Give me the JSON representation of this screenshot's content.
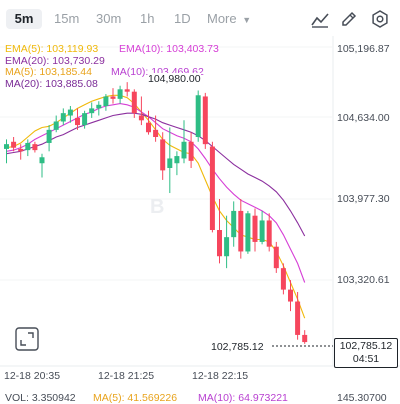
{
  "toolbar": {
    "timeframes": [
      "5m",
      "15m",
      "30m",
      "1h",
      "1D"
    ],
    "active": "5m",
    "more_label": "More",
    "icons": [
      "indicator-icon",
      "draw-icon",
      "settings-icon"
    ]
  },
  "legend": {
    "ema5": "EMA(5): 103,119.93",
    "ema10": "EMA(10): 103,403.73",
    "ema20": "EMA(20): 103,730.29",
    "ma5": "MA(5): 103,185.44",
    "ma10": "MA(10): 103,469.62",
    "ma20": "MA(20): 103,885.08"
  },
  "colors": {
    "up": "#2ebd85",
    "down": "#f6465d",
    "ema5": "#f0b90b",
    "ema10": "#d63fd6",
    "ema20": "#8b2f9e",
    "ma5": "#e8a31c",
    "ma10": "#b83fd1",
    "ma20": "#7a2a96"
  },
  "price_axis": [
    "105,196.87",
    "104,634.00",
    "103,977.30",
    "103,320.61"
  ],
  "time_axis": [
    "12-18 20:35",
    "12-18 21:25",
    "12-18 22:15"
  ],
  "max_label": "104,980.00",
  "min_label": "102,785.12",
  "current_price": "102,785.12",
  "countdown": "04:51",
  "watermark": "B",
  "bottom": {
    "vol": "VOL: 3.350942",
    "ma5": "MA(5): 41.569226",
    "ma10": "MA(10): 64.973221",
    "right": "145.30700"
  },
  "chart_data": {
    "type": "candlestick",
    "price_range": [
      102700,
      105300
    ],
    "candles": [
      {
        "o": 104420,
        "h": 104500,
        "l": 104300,
        "c": 104460
      },
      {
        "o": 104480,
        "h": 104520,
        "l": 104400,
        "c": 104430
      },
      {
        "o": 104420,
        "h": 104460,
        "l": 104330,
        "c": 104400
      },
      {
        "o": 104410,
        "h": 104500,
        "l": 104360,
        "c": 104470
      },
      {
        "o": 104460,
        "h": 104480,
        "l": 104390,
        "c": 104410
      },
      {
        "o": 104300,
        "h": 104380,
        "l": 104180,
        "c": 104350
      },
      {
        "o": 104470,
        "h": 104620,
        "l": 104400,
        "c": 104580
      },
      {
        "o": 104580,
        "h": 104700,
        "l": 104560,
        "c": 104650
      },
      {
        "o": 104650,
        "h": 104760,
        "l": 104620,
        "c": 104720
      },
      {
        "o": 104700,
        "h": 104780,
        "l": 104640,
        "c": 104750
      },
      {
        "o": 104680,
        "h": 104760,
        "l": 104580,
        "c": 104620
      },
      {
        "o": 104620,
        "h": 104740,
        "l": 104590,
        "c": 104720
      },
      {
        "o": 104720,
        "h": 104810,
        "l": 104680,
        "c": 104760
      },
      {
        "o": 104760,
        "h": 104820,
        "l": 104700,
        "c": 104790
      },
      {
        "o": 104780,
        "h": 104880,
        "l": 104740,
        "c": 104860
      },
      {
        "o": 104860,
        "h": 104930,
        "l": 104800,
        "c": 104840
      },
      {
        "o": 104840,
        "h": 104950,
        "l": 104800,
        "c": 104920
      },
      {
        "o": 104920,
        "h": 104980,
        "l": 104860,
        "c": 104900
      },
      {
        "o": 104900,
        "h": 104920,
        "l": 104680,
        "c": 104720
      },
      {
        "o": 104700,
        "h": 104860,
        "l": 104620,
        "c": 104660
      },
      {
        "o": 104640,
        "h": 104740,
        "l": 104540,
        "c": 104560
      },
      {
        "o": 104580,
        "h": 104700,
        "l": 104480,
        "c": 104520
      },
      {
        "o": 104500,
        "h": 104560,
        "l": 104160,
        "c": 104240
      },
      {
        "o": 104260,
        "h": 104600,
        "l": 104050,
        "c": 104340
      },
      {
        "o": 104300,
        "h": 104400,
        "l": 104200,
        "c": 104360
      },
      {
        "o": 104340,
        "h": 104660,
        "l": 104300,
        "c": 104480
      },
      {
        "o": 104480,
        "h": 104560,
        "l": 104260,
        "c": 104320
      },
      {
        "o": 104520,
        "h": 104910,
        "l": 104480,
        "c": 104870
      },
      {
        "o": 104860,
        "h": 104890,
        "l": 104420,
        "c": 104460
      },
      {
        "o": 104440,
        "h": 104480,
        "l": 103720,
        "c": 103740
      },
      {
        "o": 103740,
        "h": 104000,
        "l": 103460,
        "c": 103520
      },
      {
        "o": 103520,
        "h": 103860,
        "l": 103420,
        "c": 103680
      },
      {
        "o": 103680,
        "h": 103980,
        "l": 103600,
        "c": 103900
      },
      {
        "o": 103900,
        "h": 104000,
        "l": 103500,
        "c": 103560
      },
      {
        "o": 103560,
        "h": 103900,
        "l": 103540,
        "c": 103880
      },
      {
        "o": 103860,
        "h": 103920,
        "l": 103560,
        "c": 103640
      },
      {
        "o": 103640,
        "h": 103900,
        "l": 103620,
        "c": 103820
      },
      {
        "o": 103820,
        "h": 103880,
        "l": 103560,
        "c": 103600
      },
      {
        "o": 103600,
        "h": 103640,
        "l": 103380,
        "c": 103420
      },
      {
        "o": 103420,
        "h": 103460,
        "l": 103200,
        "c": 103240
      },
      {
        "o": 103240,
        "h": 103320,
        "l": 103060,
        "c": 103140
      },
      {
        "o": 103140,
        "h": 103220,
        "l": 102820,
        "c": 102860
      },
      {
        "o": 102860,
        "h": 102900,
        "l": 102785,
        "c": 102800
      }
    ],
    "lines": [
      {
        "name": "EMA(5)",
        "color": "#f0b90b",
        "values": [
          104430,
          104440,
          104470,
          104520,
          104570,
          104600,
          104610,
          104640,
          104680,
          104720,
          104760,
          104790,
          104820,
          104840,
          104860,
          104870,
          104870,
          104850,
          104800,
          104730,
          104660,
          104580,
          104500,
          104450,
          104420,
          104390,
          104380,
          104300,
          104160,
          104020,
          103900,
          103820,
          103760,
          103700,
          103680,
          103660,
          103660,
          103640,
          103560,
          103440,
          103300,
          103160,
          103000
        ]
      },
      {
        "name": "EMA(10)",
        "color": "#d63fd6",
        "values": [
          104400,
          104410,
          104430,
          104460,
          104500,
          104530,
          104560,
          104590,
          104620,
          104650,
          104680,
          104710,
          104730,
          104760,
          104780,
          104790,
          104800,
          104790,
          104770,
          104730,
          104690,
          104640,
          104590,
          104560,
          104530,
          104510,
          104480,
          104420,
          104340,
          104250,
          104170,
          104100,
          104040,
          103990,
          103960,
          103930,
          103900,
          103860,
          103800,
          103700,
          103580,
          103460,
          103300
        ]
      },
      {
        "name": "EMA(20)",
        "color": "#8b2f9e",
        "values": [
          104380,
          104390,
          104400,
          104420,
          104440,
          104460,
          104490,
          104520,
          104540,
          104570,
          104600,
          104620,
          104640,
          104660,
          104680,
          104700,
          104710,
          104720,
          104720,
          104710,
          104690,
          104670,
          104640,
          104620,
          104600,
          104580,
          104560,
          104530,
          104490,
          104440,
          104390,
          104340,
          104290,
          104250,
          104210,
          104180,
          104150,
          104110,
          104060,
          103990,
          103900,
          103800,
          103690
        ]
      }
    ]
  }
}
